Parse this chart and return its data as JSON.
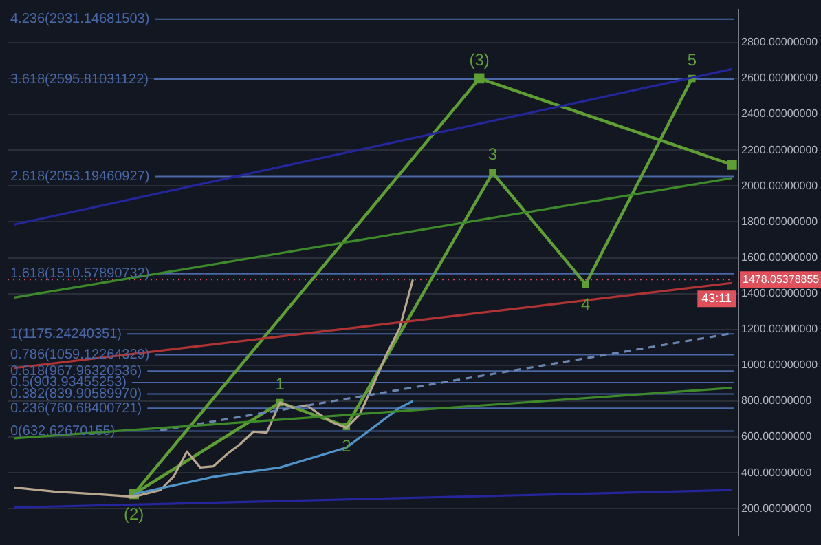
{
  "chart_data": {
    "type": "line",
    "categories": [
      null,
      null,
      null,
      null,
      null,
      null,
      null,
      null,
      null,
      null,
      null,
      null,
      null,
      null,
      null,
      null,
      null,
      null,
      null,
      null,
      null,
      null,
      null,
      null,
      null,
      null,
      null,
      null,
      null,
      null,
      null,
      null,
      null,
      null,
      null,
      null,
      null,
      null,
      null,
      null,
      null,
      null,
      null,
      null,
      null,
      null,
      null,
      null,
      null,
      null,
      null,
      null,
      null,
      null,
      null
    ],
    "series": [
      {
        "color": "#26269c",
        "values": [
          1785,
          null,
          null,
          null,
          null,
          null,
          null,
          null,
          null,
          null,
          null,
          null,
          null,
          null,
          null,
          null,
          null,
          null,
          null,
          null,
          null,
          null,
          null,
          null,
          null,
          null,
          null,
          null,
          null,
          null,
          null,
          null,
          null,
          null,
          null,
          null,
          null,
          null,
          null,
          null,
          null,
          null,
          null,
          null,
          null,
          null,
          null,
          null,
          null,
          null,
          null,
          null,
          null,
          null,
          2652
        ]
      },
      {
        "color": "#26269c",
        "values": [
          207,
          null,
          null,
          null,
          null,
          null,
          null,
          null,
          null,
          null,
          null,
          null,
          null,
          null,
          null,
          null,
          null,
          null,
          null,
          null,
          null,
          null,
          null,
          null,
          null,
          null,
          null,
          null,
          null,
          null,
          null,
          null,
          null,
          null,
          null,
          null,
          null,
          null,
          null,
          null,
          null,
          null,
          null,
          null,
          null,
          null,
          null,
          null,
          null,
          null,
          null,
          null,
          null,
          null,
          304
        ]
      },
      {
        "color": "#b03434",
        "values": [
          985,
          null,
          null,
          null,
          null,
          null,
          null,
          null,
          null,
          null,
          null,
          null,
          null,
          null,
          null,
          null,
          null,
          null,
          null,
          null,
          null,
          null,
          null,
          null,
          null,
          null,
          null,
          null,
          null,
          null,
          null,
          null,
          null,
          null,
          null,
          null,
          null,
          null,
          null,
          null,
          null,
          null,
          null,
          null,
          null,
          null,
          null,
          null,
          null,
          null,
          null,
          null,
          null,
          null,
          1459
        ]
      },
      {
        "color": "#3e8a2a",
        "values": [
          1378,
          null,
          null,
          null,
          null,
          null,
          null,
          null,
          null,
          null,
          null,
          null,
          null,
          null,
          null,
          null,
          null,
          null,
          null,
          null,
          null,
          null,
          null,
          null,
          null,
          null,
          null,
          null,
          null,
          null,
          null,
          null,
          null,
          null,
          null,
          null,
          null,
          null,
          null,
          null,
          null,
          null,
          null,
          null,
          null,
          null,
          null,
          null,
          null,
          null,
          null,
          null,
          null,
          null,
          2044
        ]
      },
      {
        "color": "#3e8a2a",
        "values": [
          593,
          null,
          null,
          null,
          null,
          null,
          null,
          null,
          null,
          null,
          null,
          null,
          null,
          null,
          null,
          null,
          null,
          null,
          null,
          null,
          null,
          null,
          null,
          null,
          null,
          null,
          null,
          null,
          null,
          null,
          null,
          null,
          null,
          null,
          null,
          null,
          null,
          null,
          null,
          null,
          null,
          null,
          null,
          null,
          null,
          null,
          null,
          null,
          null,
          null,
          null,
          null,
          null,
          null,
          874
        ]
      },
      {
        "color": "#6a85b0",
        "line_style": "dashed",
        "values": [
          null,
          null,
          null,
          null,
          null,
          null,
          null,
          null,
          null,
          null,
          null,
          637,
          null,
          null,
          null,
          null,
          null,
          null,
          null,
          null,
          null,
          null,
          null,
          null,
          null,
          null,
          null,
          null,
          null,
          null,
          null,
          null,
          null,
          null,
          null,
          null,
          null,
          null,
          null,
          null,
          null,
          null,
          null,
          null,
          null,
          null,
          null,
          null,
          null,
          null,
          null,
          null,
          null,
          null,
          1178
        ]
      },
      {
        "color": "#4f93c8",
        "values": [
          null,
          null,
          null,
          null,
          null,
          null,
          null,
          null,
          null,
          282,
          null,
          null,
          null,
          null,
          null,
          378,
          null,
          null,
          null,
          null,
          430,
          null,
          null,
          null,
          null,
          541,
          null,
          null,
          null,
          763,
          800,
          null,
          null,
          null,
          null,
          null,
          null,
          null,
          null,
          null,
          null,
          null,
          null,
          null,
          null,
          null,
          null,
          null,
          null,
          null,
          null,
          null,
          null,
          null,
          null
        ]
      },
      {
        "color": "#b8a68e",
        "values": [
          319,
          null,
          null,
          296,
          null,
          null,
          282,
          null,
          null,
          267,
          null,
          304,
          380,
          519,
          430,
          437,
          504,
          560,
          630,
          625,
          792,
          763,
          777,
          726,
          680,
          652,
          726,
          889,
          1059,
          1207,
          1478,
          null,
          null,
          null,
          null,
          null,
          null,
          null,
          null,
          null,
          null,
          null,
          null,
          null,
          null,
          null,
          null,
          null,
          null,
          null,
          null,
          null,
          null,
          null,
          null
        ]
      },
      {
        "color": "#5e9e32",
        "marker": "square",
        "values": [
          null,
          null,
          null,
          null,
          null,
          null,
          null,
          null,
          null,
          282,
          null,
          null,
          null,
          null,
          null,
          null,
          null,
          null,
          null,
          null,
          null,
          null,
          null,
          null,
          null,
          null,
          null,
          null,
          null,
          null,
          null,
          null,
          null,
          null,
          null,
          2600,
          null,
          null,
          null,
          null,
          null,
          null,
          null,
          null,
          null,
          null,
          null,
          null,
          null,
          null,
          null,
          null,
          null,
          null,
          2119
        ]
      },
      {
        "color": "#5e9e32",
        "marker": "square",
        "values": [
          null,
          null,
          null,
          null,
          null,
          null,
          null,
          null,
          null,
          282,
          null,
          null,
          null,
          null,
          null,
          null,
          null,
          null,
          null,
          null,
          792,
          null,
          null,
          null,
          null,
          659,
          null,
          null,
          null,
          null,
          null,
          null,
          null,
          null,
          null,
          null,
          2074,
          null,
          null,
          null,
          null,
          null,
          null,
          1452,
          null,
          null,
          null,
          null,
          null,
          null,
          null,
          2600,
          null,
          null,
          null
        ]
      }
    ],
    "ref_lines": [
      {
        "axis": "y",
        "value": 632.62670155,
        "label": "0(632.62670155)",
        "color": "#4a68a8"
      },
      {
        "axis": "y",
        "value": 760.68400721,
        "label": "0.236(760.68400721)",
        "color": "#4a68a8"
      },
      {
        "axis": "y",
        "value": 839.9058997,
        "label": "0.382(839.90589970)",
        "color": "#4a68a8"
      },
      {
        "axis": "y",
        "value": 903.93455253,
        "label": "0.5(903.93455253)",
        "color": "#4a68a8"
      },
      {
        "axis": "y",
        "value": 967.96320536,
        "label": "0.618(967.96320536)",
        "color": "#4a68a8"
      },
      {
        "axis": "y",
        "value": 1059.12264329,
        "label": "0.786(1059.12264329)",
        "color": "#4a68a8"
      },
      {
        "axis": "y",
        "value": 1175.24240351,
        "label": "1(1175.24240351)",
        "color": "#4a68a8"
      },
      {
        "axis": "y",
        "value": 1510.57890732,
        "label": "1.618(1510.57890732)",
        "color": "#4a68a8"
      },
      {
        "axis": "y",
        "value": 2053.19460927,
        "label": "2.618(2053.19460927)",
        "color": "#4a68a8"
      },
      {
        "axis": "y",
        "value": 2595.81031122,
        "label": "3.618(2595.81031122)",
        "color": "#4a68a8"
      },
      {
        "axis": "y",
        "value": 2931.14681503,
        "label": "4.236(2931.14681503)",
        "color": "#4a68a8"
      },
      {
        "axis": "y",
        "value": 1478.05378855,
        "label": "1478.05378855",
        "color": "#e0505a",
        "line_style": "dotted"
      }
    ],
    "annotations": [
      "43:11",
      {
        "text": "(2)",
        "y": 282
      },
      {
        "text": "(3)",
        "y": 2600
      },
      {
        "text": "1",
        "y": 792
      },
      {
        "text": "2",
        "y": 659
      },
      {
        "text": "3",
        "y": 2074
      },
      {
        "text": "4",
        "y": 1452
      },
      {
        "text": "5",
        "y": 2600
      }
    ],
    "ylim": [
      50,
      2985
    ],
    "yticks": [
      {
        "value": 200,
        "label": "200.00000000"
      },
      {
        "value": 400,
        "label": "400.00000000"
      },
      {
        "value": 600,
        "label": "600.00000000"
      },
      {
        "value": 800,
        "label": "800.00000000"
      },
      {
        "value": 1000,
        "label": "1000.00000000"
      },
      {
        "value": 1200,
        "label": "1200.00000000"
      },
      {
        "value": 1400,
        "label": "1400.00000000"
      },
      {
        "value": 1600,
        "label": "1600.00000000"
      },
      {
        "value": 1800,
        "label": "1800.00000000"
      },
      {
        "value": 2000,
        "label": "2000.00000000"
      },
      {
        "value": 2200,
        "label": "2200.00000000"
      },
      {
        "value": 2400,
        "label": "2400.00000000"
      },
      {
        "value": 2600,
        "label": "2600.00000000"
      },
      {
        "value": 2800,
        "label": "2800.00000000"
      }
    ],
    "grid": "y",
    "legend": false,
    "tick_labels": "y"
  }
}
